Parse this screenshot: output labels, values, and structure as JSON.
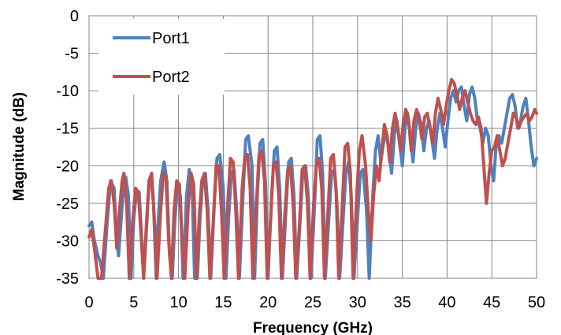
{
  "chart_data": {
    "type": "line",
    "title": "",
    "xlabel": "Frequency (GHz)",
    "ylabel": "Magnitude (dB)",
    "xlim": [
      0,
      50
    ],
    "ylim": [
      -35,
      0
    ],
    "xticks": [
      0,
      5,
      10,
      15,
      20,
      25,
      30,
      35,
      40,
      45,
      50
    ],
    "yticks": [
      0,
      -5,
      -10,
      -15,
      -20,
      -25,
      -30,
      -35
    ],
    "grid": true,
    "legend_position": "top-left",
    "series": [
      {
        "name": "Port1",
        "color": "#4F81BD",
        "points": [
          [
            0,
            -28
          ],
          [
            0.3,
            -27.5
          ],
          [
            0.6,
            -30
          ],
          [
            1.0,
            -32
          ],
          [
            1.3,
            -33
          ],
          [
            1.6,
            -35
          ],
          [
            2.0,
            -28
          ],
          [
            2.4,
            -22
          ],
          [
            2.8,
            -23
          ],
          [
            3.1,
            -30
          ],
          [
            3.3,
            -32
          ],
          [
            3.6,
            -27
          ],
          [
            3.9,
            -22
          ],
          [
            4.1,
            -21.5
          ],
          [
            4.4,
            -24
          ],
          [
            4.7,
            -35
          ],
          [
            5.0,
            -27
          ],
          [
            5.3,
            -23.5
          ],
          [
            5.6,
            -23.5
          ],
          [
            5.9,
            -30
          ],
          [
            6.1,
            -35
          ],
          [
            6.4,
            -29
          ],
          [
            6.7,
            -22
          ],
          [
            6.9,
            -21.5
          ],
          [
            7.2,
            -25
          ],
          [
            7.5,
            -35
          ],
          [
            7.7,
            -28
          ],
          [
            8.0,
            -22
          ],
          [
            8.4,
            -19.5
          ],
          [
            8.7,
            -22
          ],
          [
            9.0,
            -32
          ],
          [
            9.3,
            -35
          ],
          [
            9.6,
            -27
          ],
          [
            9.9,
            -22.5
          ],
          [
            10.2,
            -24
          ],
          [
            10.5,
            -35
          ],
          [
            10.9,
            -24
          ],
          [
            11.2,
            -20.5
          ],
          [
            11.5,
            -22
          ],
          [
            11.8,
            -35
          ],
          [
            12.1,
            -35
          ],
          [
            12.4,
            -27
          ],
          [
            12.7,
            -22
          ],
          [
            13.0,
            -21
          ],
          [
            13.3,
            -26
          ],
          [
            13.6,
            -35
          ],
          [
            14.0,
            -25
          ],
          [
            14.3,
            -19
          ],
          [
            14.6,
            -18.5
          ],
          [
            15.0,
            -23
          ],
          [
            15.3,
            -35
          ],
          [
            15.6,
            -27
          ],
          [
            15.9,
            -21
          ],
          [
            16.2,
            -20.5
          ],
          [
            16.5,
            -26
          ],
          [
            16.8,
            -35
          ],
          [
            17.2,
            -24
          ],
          [
            17.5,
            -16.5
          ],
          [
            17.8,
            -16
          ],
          [
            18.2,
            -20
          ],
          [
            18.5,
            -35
          ],
          [
            18.8,
            -24
          ],
          [
            19.1,
            -17
          ],
          [
            19.4,
            -16.5
          ],
          [
            19.7,
            -22
          ],
          [
            20.0,
            -35
          ],
          [
            20.4,
            -24
          ],
          [
            20.7,
            -18
          ],
          [
            21.0,
            -17.5
          ],
          [
            21.3,
            -23
          ],
          [
            21.6,
            -35
          ],
          [
            22.0,
            -26
          ],
          [
            22.3,
            -19.5
          ],
          [
            22.6,
            -19
          ],
          [
            22.9,
            -24
          ],
          [
            23.2,
            -35
          ],
          [
            23.6,
            -27
          ],
          [
            23.9,
            -20.5
          ],
          [
            24.2,
            -20
          ],
          [
            24.5,
            -24
          ],
          [
            24.8,
            -35
          ],
          [
            25.2,
            -25
          ],
          [
            25.5,
            -16.5
          ],
          [
            25.8,
            -16
          ],
          [
            26.1,
            -21
          ],
          [
            26.4,
            -35
          ],
          [
            26.8,
            -27
          ],
          [
            27.1,
            -21
          ],
          [
            27.4,
            -20.5
          ],
          [
            27.7,
            -25
          ],
          [
            28.0,
            -35
          ],
          [
            28.4,
            -27
          ],
          [
            28.7,
            -21
          ],
          [
            29.0,
            -19.5
          ],
          [
            29.3,
            -24
          ],
          [
            29.6,
            -35
          ],
          [
            30.0,
            -27
          ],
          [
            30.3,
            -21
          ],
          [
            30.6,
            -20.5
          ],
          [
            31.0,
            -26
          ],
          [
            31.3,
            -35
          ],
          [
            31.7,
            -24
          ],
          [
            32.0,
            -18
          ],
          [
            32.3,
            -16
          ],
          [
            32.6,
            -19.5
          ],
          [
            32.9,
            -17
          ],
          [
            33.2,
            -15.5
          ],
          [
            33.5,
            -18
          ],
          [
            33.8,
            -21
          ],
          [
            34.1,
            -16
          ],
          [
            34.4,
            -14
          ],
          [
            34.7,
            -17
          ],
          [
            35.0,
            -20
          ],
          [
            35.3,
            -15
          ],
          [
            35.6,
            -13
          ],
          [
            35.9,
            -16
          ],
          [
            36.2,
            -19.5
          ],
          [
            36.5,
            -15
          ],
          [
            36.8,
            -13
          ],
          [
            37.1,
            -14.5
          ],
          [
            37.4,
            -18
          ],
          [
            37.7,
            -15
          ],
          [
            38.0,
            -14
          ],
          [
            38.3,
            -16.5
          ],
          [
            38.6,
            -19
          ],
          [
            38.9,
            -15
          ],
          [
            39.2,
            -13
          ],
          [
            39.5,
            -15
          ],
          [
            39.8,
            -17.5
          ],
          [
            40.1,
            -14
          ],
          [
            40.4,
            -11
          ],
          [
            40.7,
            -10
          ],
          [
            41.0,
            -11.5
          ],
          [
            41.3,
            -10
          ],
          [
            41.6,
            -9.5
          ],
          [
            41.9,
            -12
          ],
          [
            42.2,
            -14
          ],
          [
            42.5,
            -10.5
          ],
          [
            42.8,
            -9.5
          ],
          [
            43.1,
            -11
          ],
          [
            43.4,
            -14
          ],
          [
            43.7,
            -15
          ],
          [
            44.0,
            -17
          ],
          [
            44.3,
            -15
          ],
          [
            44.6,
            -16
          ],
          [
            44.9,
            -20
          ],
          [
            45.2,
            -22
          ],
          [
            45.5,
            -17
          ],
          [
            45.8,
            -16
          ],
          [
            46.1,
            -17
          ],
          [
            46.4,
            -15
          ],
          [
            46.7,
            -13
          ],
          [
            47.0,
            -11
          ],
          [
            47.3,
            -10.5
          ],
          [
            47.6,
            -12
          ],
          [
            47.9,
            -15
          ],
          [
            48.2,
            -14
          ],
          [
            48.5,
            -12
          ],
          [
            48.8,
            -11
          ],
          [
            49.1,
            -14
          ],
          [
            49.4,
            -17.5
          ],
          [
            49.7,
            -20
          ],
          [
            50.0,
            -19
          ]
        ]
      },
      {
        "name": "Port2",
        "color": "#C0504D",
        "points": [
          [
            0,
            -29.5
          ],
          [
            0.3,
            -28.5
          ],
          [
            0.6,
            -31
          ],
          [
            1.0,
            -35
          ],
          [
            1.4,
            -35
          ],
          [
            1.8,
            -29
          ],
          [
            2.2,
            -23
          ],
          [
            2.5,
            -22
          ],
          [
            2.8,
            -25
          ],
          [
            3.1,
            -31
          ],
          [
            3.4,
            -26
          ],
          [
            3.7,
            -22
          ],
          [
            3.9,
            -21
          ],
          [
            4.2,
            -25
          ],
          [
            4.5,
            -35
          ],
          [
            4.9,
            -27
          ],
          [
            5.2,
            -23
          ],
          [
            5.5,
            -23.5
          ],
          [
            5.8,
            -29
          ],
          [
            6.1,
            -35
          ],
          [
            6.4,
            -28
          ],
          [
            6.7,
            -22
          ],
          [
            7.0,
            -21
          ],
          [
            7.3,
            -27
          ],
          [
            7.6,
            -35
          ],
          [
            8.0,
            -26
          ],
          [
            8.3,
            -21
          ],
          [
            8.6,
            -21.5
          ],
          [
            8.9,
            -30
          ],
          [
            9.2,
            -35
          ],
          [
            9.5,
            -26
          ],
          [
            9.8,
            -22
          ],
          [
            10.1,
            -22.5
          ],
          [
            10.4,
            -30
          ],
          [
            10.7,
            -35
          ],
          [
            11.1,
            -25
          ],
          [
            11.4,
            -21
          ],
          [
            11.7,
            -22.5
          ],
          [
            12.0,
            -35
          ],
          [
            12.3,
            -27
          ],
          [
            12.6,
            -22
          ],
          [
            12.9,
            -21
          ],
          [
            13.2,
            -26
          ],
          [
            13.5,
            -35
          ],
          [
            13.9,
            -27
          ],
          [
            14.2,
            -20
          ],
          [
            14.5,
            -20
          ],
          [
            14.8,
            -26
          ],
          [
            15.1,
            -35
          ],
          [
            15.5,
            -25
          ],
          [
            15.8,
            -19
          ],
          [
            16.1,
            -19.5
          ],
          [
            16.4,
            -26
          ],
          [
            16.7,
            -35
          ],
          [
            17.1,
            -23
          ],
          [
            17.4,
            -19
          ],
          [
            17.7,
            -18.5
          ],
          [
            18.0,
            -23
          ],
          [
            18.3,
            -35
          ],
          [
            18.7,
            -25
          ],
          [
            19.0,
            -18.5
          ],
          [
            19.3,
            -18
          ],
          [
            19.6,
            -22
          ],
          [
            19.9,
            -35
          ],
          [
            20.3,
            -27
          ],
          [
            20.6,
            -20
          ],
          [
            20.9,
            -19.5
          ],
          [
            21.2,
            -24
          ],
          [
            21.5,
            -35
          ],
          [
            21.9,
            -26
          ],
          [
            22.2,
            -20.5
          ],
          [
            22.5,
            -20
          ],
          [
            22.8,
            -25
          ],
          [
            23.1,
            -35
          ],
          [
            23.5,
            -28
          ],
          [
            23.8,
            -20.5
          ],
          [
            24.1,
            -20
          ],
          [
            24.4,
            -25
          ],
          [
            24.7,
            -35
          ],
          [
            25.1,
            -25
          ],
          [
            25.4,
            -20
          ],
          [
            25.7,
            -19
          ],
          [
            26.0,
            -23
          ],
          [
            26.3,
            -35
          ],
          [
            26.7,
            -26
          ],
          [
            27.0,
            -19
          ],
          [
            27.3,
            -18.5
          ],
          [
            27.6,
            -23
          ],
          [
            27.9,
            -35
          ],
          [
            28.3,
            -25
          ],
          [
            28.6,
            -17.5
          ],
          [
            28.9,
            -17
          ],
          [
            29.2,
            -21
          ],
          [
            29.5,
            -35
          ],
          [
            29.9,
            -24
          ],
          [
            30.2,
            -18
          ],
          [
            30.5,
            -16
          ],
          [
            30.9,
            -20
          ],
          [
            31.2,
            -26
          ],
          [
            31.5,
            -30
          ],
          [
            31.8,
            -24
          ],
          [
            32.1,
            -20
          ],
          [
            32.4,
            -22
          ],
          [
            32.7,
            -18
          ],
          [
            33.0,
            -14.5
          ],
          [
            33.3,
            -16
          ],
          [
            33.6,
            -19.5
          ],
          [
            33.9,
            -15
          ],
          [
            34.2,
            -13
          ],
          [
            34.5,
            -15
          ],
          [
            34.8,
            -18
          ],
          [
            35.1,
            -14.5
          ],
          [
            35.4,
            -12.5
          ],
          [
            35.7,
            -14
          ],
          [
            36.0,
            -18
          ],
          [
            36.3,
            -14
          ],
          [
            36.6,
            -12.5
          ],
          [
            36.9,
            -14
          ],
          [
            37.2,
            -16.5
          ],
          [
            37.5,
            -13.5
          ],
          [
            37.8,
            -13
          ],
          [
            38.1,
            -15
          ],
          [
            38.4,
            -17
          ],
          [
            38.7,
            -13
          ],
          [
            39.0,
            -11
          ],
          [
            39.3,
            -12.5
          ],
          [
            39.6,
            -14.5
          ],
          [
            39.9,
            -12
          ],
          [
            40.2,
            -10
          ],
          [
            40.5,
            -8.5
          ],
          [
            40.8,
            -9
          ],
          [
            41.1,
            -10.5
          ],
          [
            41.4,
            -12.5
          ],
          [
            41.7,
            -11
          ],
          [
            42.0,
            -10
          ],
          [
            42.3,
            -11.5
          ],
          [
            42.6,
            -13
          ],
          [
            42.9,
            -14
          ],
          [
            43.2,
            -14.5
          ],
          [
            43.5,
            -13.5
          ],
          [
            43.8,
            -15
          ],
          [
            44.1,
            -20
          ],
          [
            44.4,
            -25
          ],
          [
            44.7,
            -21
          ],
          [
            45.0,
            -18
          ],
          [
            45.3,
            -17.5
          ],
          [
            45.6,
            -16
          ],
          [
            45.9,
            -18
          ],
          [
            46.2,
            -20
          ],
          [
            46.5,
            -19
          ],
          [
            46.8,
            -17
          ],
          [
            47.1,
            -15
          ],
          [
            47.4,
            -13
          ],
          [
            47.7,
            -13.5
          ],
          [
            48.0,
            -15
          ],
          [
            48.3,
            -14
          ],
          [
            48.6,
            -13.5
          ],
          [
            48.9,
            -13
          ],
          [
            49.2,
            -14
          ],
          [
            49.5,
            -13.5
          ],
          [
            49.8,
            -12.5
          ],
          [
            50.0,
            -13
          ]
        ]
      }
    ]
  }
}
